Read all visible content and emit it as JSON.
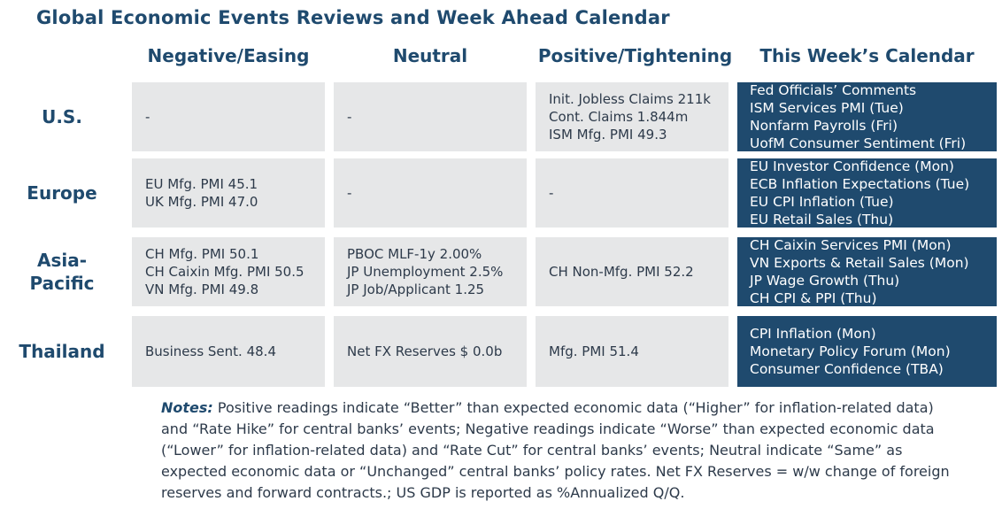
{
  "title": "Global Economic Events Reviews and Week Ahead Calendar",
  "columns": [
    "Negative/Easing",
    "Neutral",
    "Positive/Tightening",
    "This Week’s Calendar"
  ],
  "rows": [
    {
      "region": "U.S.",
      "negative": [
        "-"
      ],
      "neutral": [
        "-"
      ],
      "positive": [
        "Init. Jobless Claims 211k",
        "Cont. Claims 1.844m",
        "ISM Mfg. PMI 49.3"
      ],
      "calendar": [
        "Fed Officials’ Comments",
        "ISM Services PMI (Tue)",
        "Nonfarm Payrolls (Fri)",
        "UofM Consumer Sentiment (Fri)"
      ]
    },
    {
      "region": "Europe",
      "negative": [
        "EU Mfg. PMI 45.1",
        "UK Mfg. PMI 47.0"
      ],
      "neutral": [
        "-"
      ],
      "positive": [
        "-"
      ],
      "calendar": [
        "EU Investor Confidence (Mon)",
        "ECB Inflation Expectations (Tue)",
        "EU CPI Inflation (Tue)",
        "EU Retail Sales (Thu)"
      ]
    },
    {
      "region_line1": "Asia-",
      "region_line2": "Pacific",
      "negative": [
        "CH Mfg. PMI 50.1",
        "CH Caixin Mfg. PMI 50.5",
        "VN Mfg. PMI 49.8"
      ],
      "neutral": [
        "PBOC MLF-1y 2.00%",
        "JP Unemployment 2.5%",
        "JP Job/Applicant 1.25"
      ],
      "positive": [
        "CH Non-Mfg. PMI 52.2"
      ],
      "calendar": [
        "CH Caixin Services PMI (Mon)",
        "VN Exports & Retail Sales (Mon)",
        "JP Wage Growth (Thu)",
        "CH CPI & PPI (Thu)"
      ]
    },
    {
      "region": "Thailand",
      "negative": [
        "Business Sent. 48.4"
      ],
      "neutral": [
        "Net FX Reserves $ 0.0b"
      ],
      "positive": [
        "Mfg. PMI 51.4"
      ],
      "calendar": [
        "CPI Inflation (Mon)",
        "Monetary Policy Forum (Mon)",
        "Consumer Confidence (TBA)"
      ]
    }
  ],
  "notes": {
    "label": "Notes:",
    "text": " Positive readings indicate “Better” than expected economic data (“Higher” for inflation-related data) and “Rate Hike” for central banks’ events; Negative readings indicate “Worse” than expected economic data (“Lower” for inflation-related data) and “Rate Cut” for central banks’ events; Neutral indicate “Same” as expected economic data or “Unchanged” central banks’ policy rates. Net FX Reserves = w/w change of foreign reserves and forward contracts.; US GDP is reported as %Annualized Q/Q."
  },
  "colors": {
    "navy": "#1f4a6e",
    "cell_bg": "#e6e7e8"
  }
}
